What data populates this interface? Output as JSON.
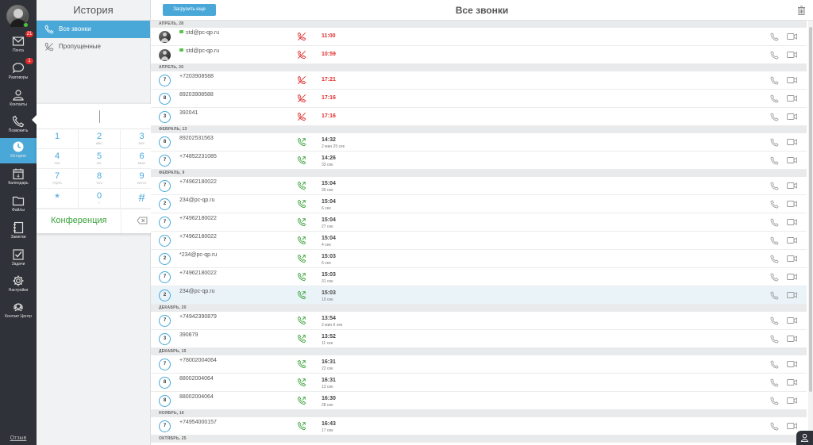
{
  "sidebar": {
    "items": [
      {
        "label": "Почта",
        "icon": "mail-icon",
        "badge": "21"
      },
      {
        "label": "Разговоры",
        "icon": "chat-icon",
        "badge": "1"
      },
      {
        "label": "Контакты",
        "icon": "contacts-icon",
        "badge": ""
      },
      {
        "label": "Позвонить",
        "icon": "phone-icon",
        "badge": ""
      },
      {
        "label": "История",
        "icon": "history-icon",
        "badge": ""
      },
      {
        "label": "Календарь",
        "icon": "calendar-icon",
        "badge": "",
        "day": "4"
      },
      {
        "label": "Файлы",
        "icon": "folder-icon",
        "badge": ""
      },
      {
        "label": "Заметки",
        "icon": "notes-icon",
        "badge": ""
      },
      {
        "label": "Задачи",
        "icon": "tasks-icon",
        "badge": ""
      },
      {
        "label": "Настройки",
        "icon": "settings-icon",
        "badge": ""
      },
      {
        "label": "Контакт Центр",
        "icon": "contact-center-icon",
        "badge": ""
      }
    ],
    "active": "История",
    "feedback": "Отзыв"
  },
  "history_panel": {
    "title": "История",
    "filters": [
      {
        "label": "Все звонки",
        "active": true
      },
      {
        "label": "Пропущенные",
        "active": false
      }
    ]
  },
  "dialpad": {
    "keys": [
      {
        "digit": "1",
        "letters": ""
      },
      {
        "digit": "2",
        "letters": "ABC"
      },
      {
        "digit": "3",
        "letters": "DEF"
      },
      {
        "digit": "4",
        "letters": "GHI"
      },
      {
        "digit": "5",
        "letters": "JKL"
      },
      {
        "digit": "6",
        "letters": "MNO"
      },
      {
        "digit": "7",
        "letters": "PQRS"
      },
      {
        "digit": "8",
        "letters": "TUV"
      },
      {
        "digit": "9",
        "letters": "WXYZ"
      },
      {
        "digit": "*",
        "letters": ""
      },
      {
        "digit": "0",
        "letters": "+"
      },
      {
        "digit": "#",
        "letters": ""
      }
    ],
    "conference_label": "Конференция"
  },
  "main": {
    "load_more": "Загрузить еще",
    "title": "Все звонки",
    "groups": [
      {
        "label": "АПРЕЛЬ, 28",
        "calls": [
          {
            "avatar": "photo",
            "badge": "",
            "name": "std@pc-qp.ru",
            "online": true,
            "status": "missed",
            "time": "11:00",
            "duration": ""
          },
          {
            "avatar": "photo",
            "badge": "",
            "name": "std@pc-qp.ru",
            "online": true,
            "status": "missed",
            "time": "10:59",
            "duration": ""
          }
        ]
      },
      {
        "label": "АПРЕЛЬ, 26",
        "calls": [
          {
            "avatar": "badge",
            "badge": "7",
            "name": "+7203908588",
            "status": "missed",
            "time": "17:21",
            "duration": ""
          },
          {
            "avatar": "badge",
            "badge": "8",
            "name": "89203908588",
            "status": "missed",
            "time": "17:16",
            "duration": ""
          },
          {
            "avatar": "badge",
            "badge": "3",
            "name": "392041",
            "status": "missed",
            "time": "17:16",
            "duration": ""
          }
        ]
      },
      {
        "label": "ФЕВРАЛЬ, 13",
        "calls": [
          {
            "avatar": "badge",
            "badge": "8",
            "name": "89202531563",
            "status": "answered",
            "time": "14:32",
            "duration": "2 мин 25 сек"
          },
          {
            "avatar": "badge",
            "badge": "7",
            "name": "+74852231085",
            "status": "answered",
            "time": "14:26",
            "duration": "33 сек"
          }
        ]
      },
      {
        "label": "ФЕВРАЛЬ, 9",
        "calls": [
          {
            "avatar": "badge",
            "badge": "7",
            "name": "+74962180022",
            "status": "answered",
            "time": "15:04",
            "duration": "35 сек"
          },
          {
            "avatar": "badge",
            "badge": "2",
            "name": "234@pc-qp.ru",
            "status": "answered",
            "time": "15:04",
            "duration": "6 сек"
          },
          {
            "avatar": "badge",
            "badge": "7",
            "name": "+74962180022",
            "status": "answered",
            "time": "15:04",
            "duration": "27 сек"
          },
          {
            "avatar": "badge",
            "badge": "7",
            "name": "+74962180022",
            "status": "answered",
            "time": "15:04",
            "duration": "4 сек"
          },
          {
            "avatar": "badge",
            "badge": "2",
            "name": "*234@pc-qp.ru",
            "status": "answered",
            "time": "15:03",
            "duration": "6 сек"
          },
          {
            "avatar": "badge",
            "badge": "7",
            "name": "+74962180022",
            "status": "answered",
            "time": "15:03",
            "duration": "31 сек"
          },
          {
            "avatar": "badge",
            "badge": "2",
            "name": "234@pc-qp.ru",
            "status": "answered",
            "time": "15:03",
            "duration": "10 сек",
            "selected": true
          }
        ]
      },
      {
        "label": "ДЕКАБРЬ, 20",
        "calls": [
          {
            "avatar": "badge",
            "badge": "7",
            "name": "+74942390879",
            "status": "answered",
            "time": "13:54",
            "duration": "2 мин 9 сек"
          },
          {
            "avatar": "badge",
            "badge": "3",
            "name": "390879",
            "status": "answered",
            "time": "13:52",
            "duration": "11 сек"
          }
        ]
      },
      {
        "label": "ДЕКАБРЬ, 15",
        "calls": [
          {
            "avatar": "badge",
            "badge": "7",
            "name": "+78002004064",
            "status": "answered",
            "time": "16:31",
            "duration": "22 сек"
          },
          {
            "avatar": "badge",
            "badge": "8",
            "name": "88002004064",
            "status": "answered",
            "time": "16:31",
            "duration": "13 сек"
          },
          {
            "avatar": "badge",
            "badge": "8",
            "name": "88002004064",
            "status": "answered",
            "time": "16:30",
            "duration": "28 сек"
          }
        ]
      },
      {
        "label": "НОЯБРЬ, 16",
        "calls": [
          {
            "avatar": "badge",
            "badge": "7",
            "name": "+74954000157",
            "status": "answered",
            "time": "16:43",
            "duration": "17 сек"
          }
        ]
      },
      {
        "label": "ОКТЯБРЬ, 25",
        "calls": []
      }
    ]
  },
  "colors": {
    "accent": "#4aa8d8",
    "rail": "#2f3238",
    "missed": "#e02c2c",
    "answered": "#3aa33a",
    "online": "#4cc33c"
  }
}
